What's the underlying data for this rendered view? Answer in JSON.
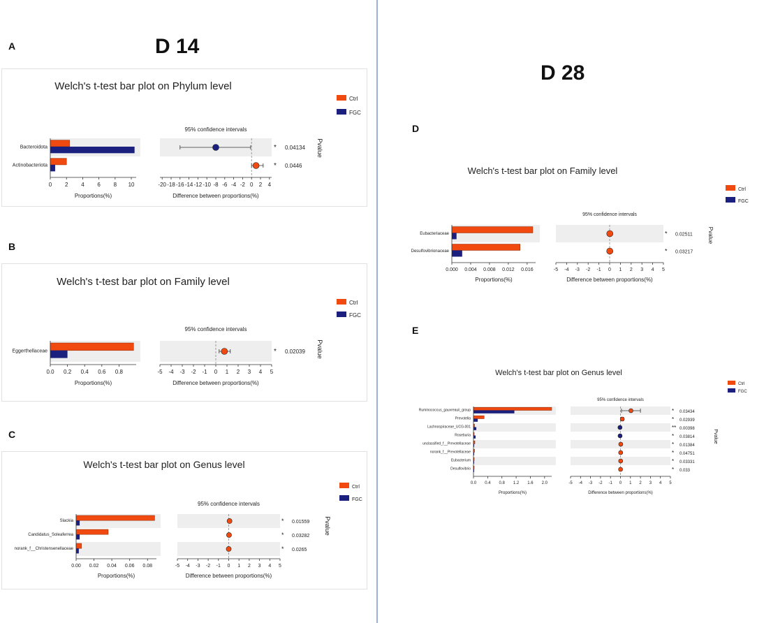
{
  "headings": {
    "left": "D 14",
    "right": "D 28"
  },
  "panel_letters": [
    "A",
    "B",
    "C",
    "D",
    "E"
  ],
  "colors": {
    "ctrl": "#f04a11",
    "fgc": "#1b1f7e",
    "divider": "#9ab0d8",
    "band": "#eeeeee",
    "star": "#e24a4a"
  },
  "chart_data": [
    {
      "id": "A",
      "type": "bar",
      "title": "Welch's t-test bar plot on Phylum level",
      "legend": [
        "Ctrl",
        "FGC"
      ],
      "categories": [
        "Bacteroidota",
        "Actinobacteriota"
      ],
      "series": [
        {
          "name": "Ctrl",
          "values": [
            2.4,
            2.0
          ]
        },
        {
          "name": "FGC",
          "values": [
            10.4,
            0.6
          ]
        }
      ],
      "prop_xlabel": "Proportions(%)",
      "prop_xlim": [
        0,
        10.6
      ],
      "prop_ticks": [
        "0",
        "2",
        "4",
        "6",
        "8",
        "10"
      ],
      "ci_title": "95% confidence intervals",
      "ci_xlabel": "Difference between proportions(%)",
      "ci_xlim": [
        -20.5,
        4.5
      ],
      "ci_ticks": [
        "-20",
        "-18",
        "-16",
        "-14",
        "-12",
        "-10",
        "-8",
        "-6",
        "-4",
        "-2",
        "0",
        "2",
        "4"
      ],
      "differences": [
        {
          "est": -8.0,
          "low": -16.0,
          "high": -0.2
        },
        {
          "est": 1.0,
          "low": 0.0,
          "high": 2.6
        }
      ],
      "pvalues": [
        "0.04134",
        "0.0446"
      ],
      "stars": [
        "*",
        "*"
      ],
      "pvalue_label": "Pvalue"
    },
    {
      "id": "B",
      "type": "bar",
      "title": "Welch's t-test bar plot on Family level",
      "legend": [
        "Ctrl",
        "FGC"
      ],
      "categories": [
        "Eggerthellaceae"
      ],
      "series": [
        {
          "name": "Ctrl",
          "values": [
            0.97
          ]
        },
        {
          "name": "FGC",
          "values": [
            0.2
          ]
        }
      ],
      "prop_xlabel": "Proportions(%)",
      "prop_xlim": [
        0,
        1.0
      ],
      "prop_ticks": [
        "0.0",
        "0.2",
        "0.4",
        "0.6",
        "0.8"
      ],
      "ci_title": "95% confidence intervals",
      "ci_xlabel": "Difference between proportions(%)",
      "ci_xlim": [
        -5,
        5
      ],
      "ci_ticks": [
        "-5",
        "-4",
        "-3",
        "-2",
        "-1",
        "0",
        "1",
        "2",
        "3",
        "4",
        "5"
      ],
      "differences": [
        {
          "est": 0.77,
          "low": 0.3,
          "high": 1.3
        }
      ],
      "pvalues": [
        "0.02039"
      ],
      "stars": [
        "*"
      ],
      "pvalue_label": "Pvalue"
    },
    {
      "id": "C",
      "type": "bar",
      "title": "Welch's t-test bar plot on Genus level",
      "legend": [
        "Ctrl",
        "FGC"
      ],
      "categories": [
        "Slackia",
        "Candidatus_Soleaferrea",
        "norank_f__Christensenellaceae"
      ],
      "series": [
        {
          "name": "Ctrl",
          "values": [
            0.088,
            0.036,
            0.006
          ]
        },
        {
          "name": "FGC",
          "values": [
            0.004,
            0.004,
            0.003
          ]
        }
      ],
      "prop_xlabel": "Proportions(%)",
      "prop_xlim": [
        0,
        0.09
      ],
      "prop_ticks": [
        "0.00",
        "0.02",
        "0.04",
        "0.06",
        "0.08"
      ],
      "ci_title": "95% confidence intervals",
      "ci_xlabel": "Difference between proportions(%)",
      "ci_xlim": [
        -5,
        5
      ],
      "ci_ticks": [
        "-5",
        "-4",
        "-3",
        "-2",
        "-1",
        "0",
        "1",
        "2",
        "3",
        "4",
        "5"
      ],
      "differences": [
        {
          "est": 0.08,
          "low": 0.0,
          "high": 0.15
        },
        {
          "est": 0.03,
          "low": 0.0,
          "high": 0.07
        },
        {
          "est": 0.0,
          "low": -0.03,
          "high": 0.03
        }
      ],
      "pvalues": [
        "0.01559",
        "0.03282",
        "0.0265"
      ],
      "stars": [
        "*",
        "*",
        "*"
      ],
      "pvalue_label": "Pvalue"
    },
    {
      "id": "D",
      "type": "bar",
      "title": "Welch's t-test bar plot on Family level",
      "legend": [
        "Ctrl",
        "FGC"
      ],
      "categories": [
        "Eubacteriaceae",
        "Desulfovibrionaceae"
      ],
      "series": [
        {
          "name": "Ctrl",
          "values": [
            0.0172,
            0.0145
          ]
        },
        {
          "name": "FGC",
          "values": [
            0.001,
            0.0022
          ]
        }
      ],
      "prop_xlabel": "Proportions(%)",
      "prop_xlim": [
        0,
        0.0178
      ],
      "prop_ticks": [
        "0.000",
        "0.004",
        "0.008",
        "0.012",
        "0.016"
      ],
      "ci_title": "95% confidence intervals",
      "ci_xlabel": "Difference between proportions(%)",
      "ci_xlim": [
        -5,
        5
      ],
      "ci_ticks": [
        "-5",
        "-4",
        "-3",
        "-2",
        "-1",
        "0",
        "1",
        "2",
        "3",
        "4",
        "5"
      ],
      "differences": [
        {
          "est": 0.016,
          "low": 0.0,
          "high": 0.03
        },
        {
          "est": 0.012,
          "low": 0.0,
          "high": 0.025
        }
      ],
      "pvalues": [
        "0.02511",
        "0.03217"
      ],
      "stars": [
        "*",
        "*"
      ],
      "pvalue_label": "Pvalue"
    },
    {
      "id": "E",
      "type": "bar",
      "title": "Welch's t-test bar plot on Genus level",
      "legend": [
        "Ctrl",
        "FGC"
      ],
      "categories": [
        "Ruminococcus_gauvreauii_group",
        "Prevotella",
        "Lachnospiraceae_UCG-001",
        "Roseburia",
        "unclassified_f__Prevotellaceae",
        "norank_f__Prevotellaceae",
        "Eubacterium",
        "Desulfovibrio"
      ],
      "series": [
        {
          "name": "Ctrl",
          "values": [
            2.2,
            0.3,
            0.03,
            0.02,
            0.04,
            0.03,
            0.02,
            0.01
          ]
        },
        {
          "name": "FGC",
          "values": [
            1.15,
            0.12,
            0.08,
            0.06,
            0.01,
            0.01,
            0.0,
            0.0
          ]
        }
      ],
      "prop_xlabel": "Proportions(%)",
      "prop_xlim": [
        0,
        2.2
      ],
      "prop_ticks": [
        "0.0",
        "0.4",
        "0.8",
        "1.2",
        "1.6",
        "2.0"
      ],
      "ci_title": "95% confidence intervals",
      "ci_xlabel": "Difference between proportions(%)",
      "ci_xlim": [
        -5,
        5
      ],
      "ci_ticks": [
        "-5",
        "-4",
        "-3",
        "-2",
        "-1",
        "0",
        "1",
        "2",
        "3",
        "4",
        "5"
      ],
      "differences": [
        {
          "est": 1.05,
          "low": 0.1,
          "high": 2.0
        },
        {
          "est": 0.18,
          "low": 0.05,
          "high": 0.3
        },
        {
          "est": -0.05,
          "low": -0.1,
          "high": 0.0
        },
        {
          "est": -0.04,
          "low": -0.08,
          "high": 0.0
        },
        {
          "est": 0.03,
          "low": 0.0,
          "high": 0.06
        },
        {
          "est": 0.02,
          "low": 0.0,
          "high": 0.05
        },
        {
          "est": 0.02,
          "low": 0.0,
          "high": 0.04
        },
        {
          "est": 0.01,
          "low": 0.0,
          "high": 0.02
        }
      ],
      "pvalues": [
        "0.03434",
        "0.02939",
        "0.00398",
        "0.03814",
        "0.01384",
        "0.04751",
        "0.03331",
        "0.033"
      ],
      "stars": [
        "*",
        "*",
        "**",
        "*",
        "*",
        "*",
        "*",
        "*"
      ],
      "pvalue_label": "Pvalue"
    }
  ]
}
